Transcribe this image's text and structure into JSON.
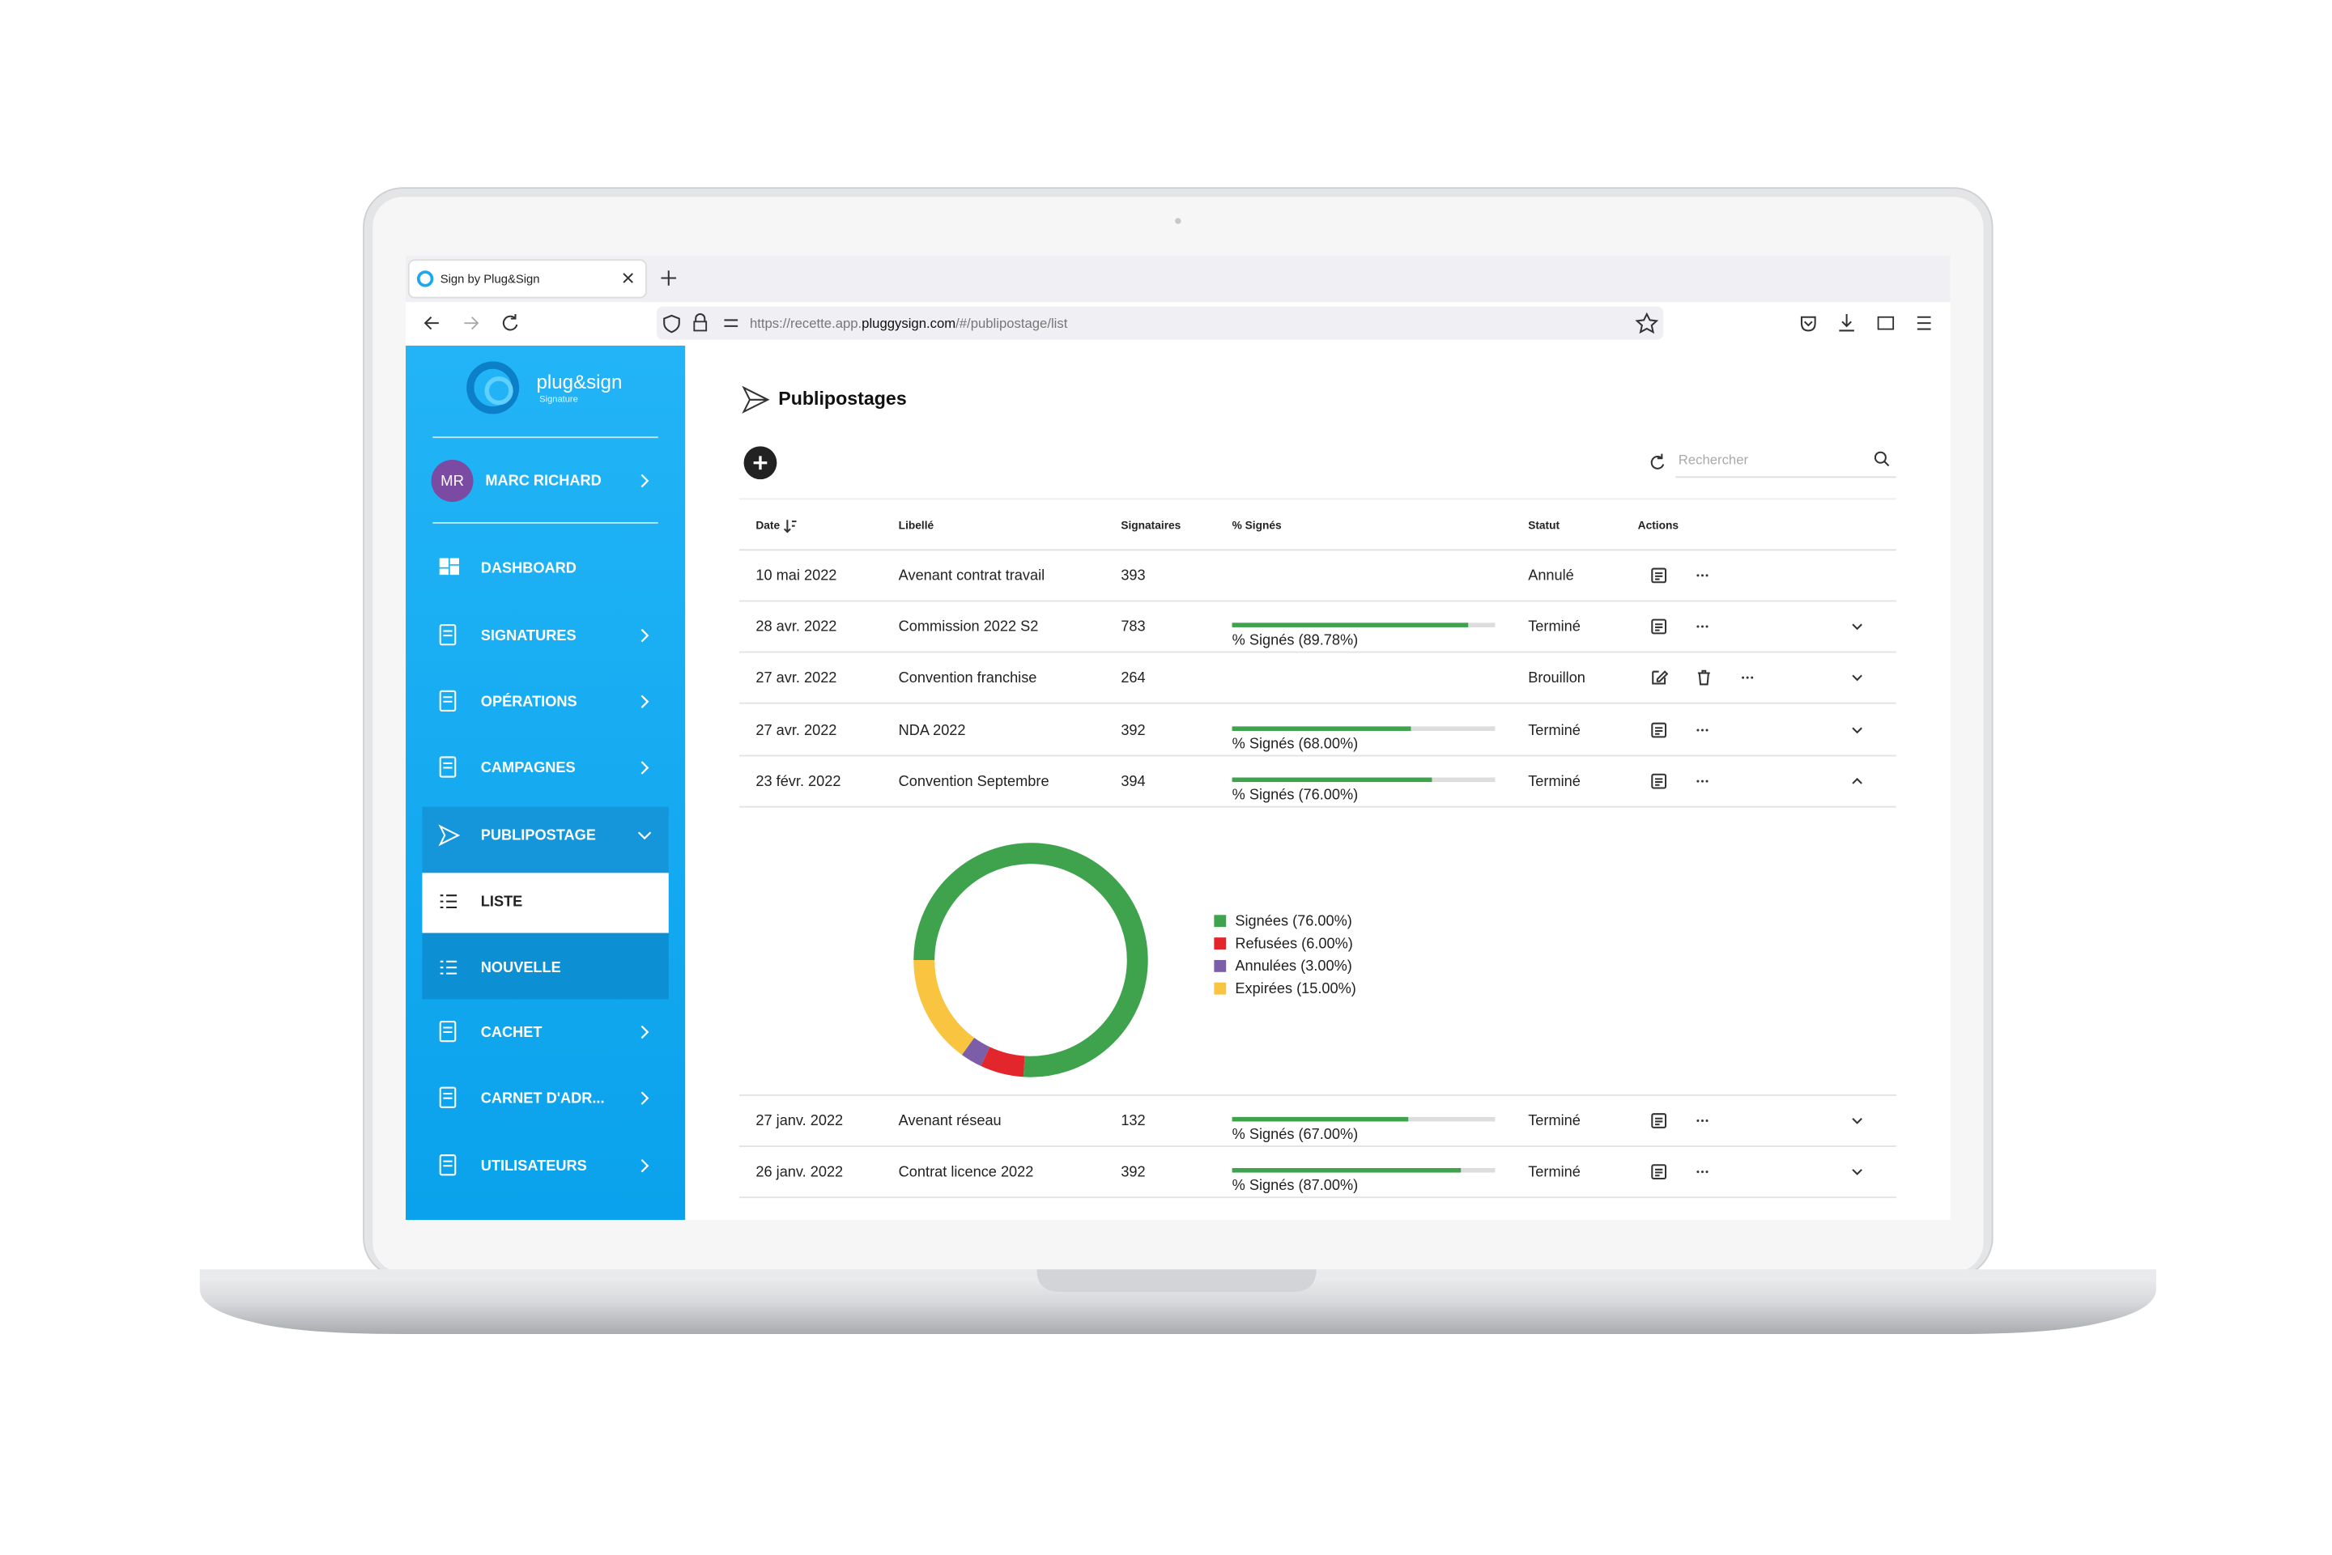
{
  "browser": {
    "tab_title": "Sign by Plug&Sign",
    "url_prefix": "https://recette.app.",
    "url_domain": "pluggysign.com",
    "url_path": "/#/publipostage/list"
  },
  "sidebar": {
    "logo": "plug&sign",
    "logo_sub": "Signature",
    "user_initials": "MR",
    "user_name": "MARC RICHARD",
    "menu": [
      "DASHBOARD",
      "SIGNATURES",
      "OPÉRATIONS",
      "CAMPAGNES",
      "PUBLIPOSTAGE",
      "LISTE",
      "NOUVELLE",
      "CACHET",
      "CARNET D'ADR...",
      "UTILISATEURS"
    ]
  },
  "main": {
    "title": "Publipostages",
    "search_placeholder": "Rechercher"
  },
  "table": {
    "headers": [
      "Date",
      "Libellé",
      "Signataires",
      "% Signés",
      "Statut",
      "Actions"
    ],
    "rows": [
      {
        "date": "10 mai 2022",
        "label": "Avenant contrat travail",
        "signers": 393,
        "signed_pct": null,
        "signed_label": null,
        "status": "Annulé"
      },
      {
        "date": "28 avr. 2022",
        "label": "Commission 2022 S2",
        "signers": 783,
        "signed_pct": 89.78,
        "signed_label": "% Signés (89.78%)",
        "status": "Terminé"
      },
      {
        "date": "27 avr. 2022",
        "label": "Convention franchise",
        "signers": 264,
        "signed_pct": null,
        "signed_label": null,
        "status": "Brouillon"
      },
      {
        "date": "27 avr. 2022",
        "label": "NDA 2022",
        "signers": 392,
        "signed_pct": 68.0,
        "signed_label": "% Signés (68.00%)",
        "status": "Terminé"
      },
      {
        "date": "23 févr. 2022",
        "label": "Convention Septembre",
        "signers": 394,
        "signed_pct": 76.0,
        "signed_label": "% Signés (76.00%)",
        "status": "Terminé"
      },
      {
        "date": "27 janv. 2022",
        "label": "Avenant réseau",
        "signers": 132,
        "signed_pct": 67.0,
        "signed_label": "% Signés (67.00%)",
        "status": "Terminé"
      },
      {
        "date": "26 janv. 2022",
        "label": "Contrat licence 2022",
        "signers": 392,
        "signed_pct": 87.0,
        "signed_label": "% Signés (87.00%)",
        "status": "Terminé"
      }
    ]
  },
  "donut": {
    "segments": [
      {
        "name": "Signées (76.00%)",
        "value": 76,
        "color": "#3fa34d"
      },
      {
        "name": "Refusées (6.00%)",
        "value": 6,
        "color": "#e3262b"
      },
      {
        "name": "Annulées (3.00%)",
        "value": 3,
        "color": "#7b5ea7"
      },
      {
        "name": "Expirées (15.00%)",
        "value": 15,
        "color": "#f9c440"
      }
    ]
  }
}
